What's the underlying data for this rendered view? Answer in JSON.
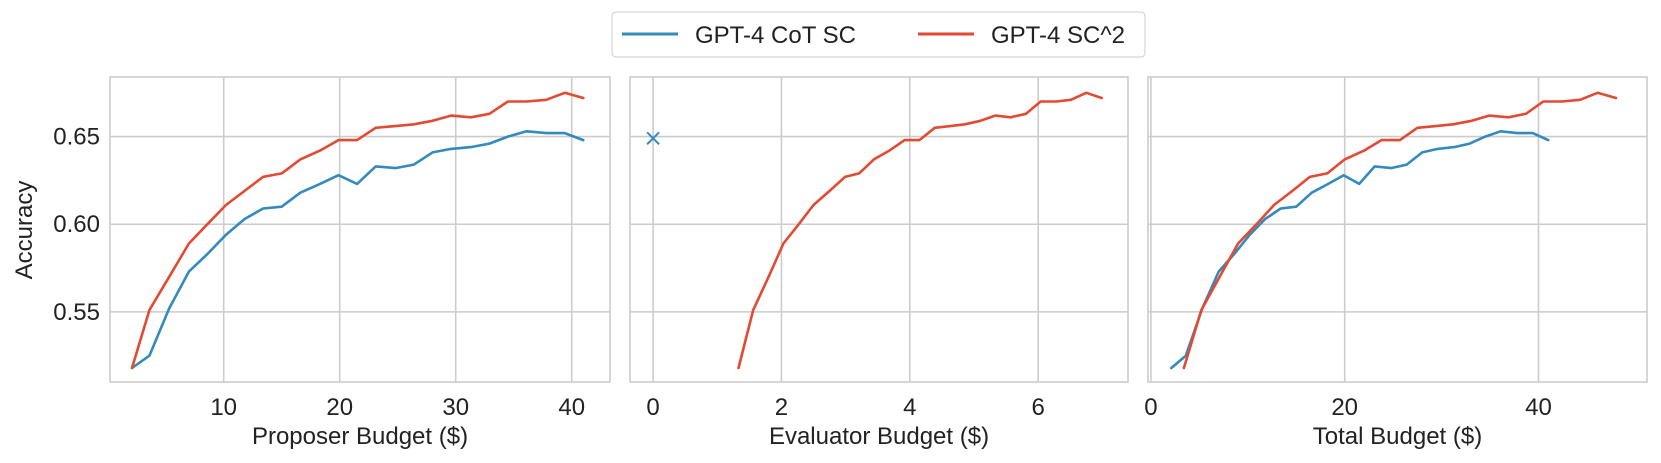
{
  "legend": {
    "entries": [
      {
        "label": "GPT-4 CoT SC",
        "color": "#348ABD"
      },
      {
        "label": "GPT-4 SC^2",
        "color": "#E24A33"
      }
    ]
  },
  "ylabel": "Accuracy",
  "chart_data": [
    {
      "type": "line",
      "xlabel": "Proposer Budget ($)",
      "ylabel": "Accuracy",
      "xlim": [
        0.2,
        43.3
      ],
      "ylim": [
        0.51,
        0.684
      ],
      "xticks": [
        10,
        20,
        30,
        40
      ],
      "yticks": [
        0.55,
        0.6,
        0.65
      ],
      "grid": true,
      "series": [
        {
          "name": "GPT-4 CoT SC",
          "color": "#348ABD",
          "x": [
            2.1,
            3.6,
            5.3,
            7.0,
            8.6,
            10.2,
            11.8,
            13.4,
            15.0,
            16.6,
            18.3,
            19.9,
            21.5,
            23.1,
            24.8,
            26.4,
            28.0,
            29.6,
            31.3,
            32.9,
            34.5,
            36.1,
            37.8,
            39.4,
            41.0
          ],
          "y": [
            0.518,
            0.525,
            0.552,
            0.573,
            0.583,
            0.594,
            0.603,
            0.609,
            0.61,
            0.618,
            0.623,
            0.628,
            0.623,
            0.633,
            0.632,
            0.634,
            0.641,
            0.643,
            0.644,
            0.646,
            0.65,
            0.653,
            0.652,
            0.652,
            0.648
          ]
        },
        {
          "name": "GPT-4 SC^2",
          "color": "#E24A33",
          "x": [
            2.1,
            3.6,
            5.3,
            7.0,
            8.6,
            10.2,
            11.8,
            13.4,
            15.0,
            16.6,
            18.3,
            19.9,
            21.5,
            23.1,
            24.8,
            26.4,
            28.0,
            29.6,
            31.3,
            32.9,
            34.5,
            36.1,
            37.8,
            39.4,
            41.0
          ],
          "y": [
            0.518,
            0.551,
            0.57,
            0.589,
            0.6,
            0.611,
            0.619,
            0.627,
            0.629,
            0.637,
            0.642,
            0.648,
            0.648,
            0.655,
            0.656,
            0.657,
            0.659,
            0.662,
            0.661,
            0.663,
            0.67,
            0.67,
            0.671,
            0.675,
            0.672
          ]
        }
      ]
    },
    {
      "type": "line",
      "xlabel": "Evaluator Budget ($)",
      "xlim": [
        -0.36,
        7.4
      ],
      "ylim": [
        0.51,
        0.684
      ],
      "xticks": [
        0,
        2,
        4,
        6
      ],
      "yticks": [
        0.55,
        0.6,
        0.65
      ],
      "grid": true,
      "series": [
        {
          "name": "GPT-4 CoT SC",
          "color": "#348ABD",
          "marker": "x",
          "x": [
            0
          ],
          "y": [
            0.649
          ]
        },
        {
          "name": "GPT-4 SC^2",
          "color": "#E24A33",
          "x": [
            1.33,
            1.56,
            1.8,
            2.03,
            2.27,
            2.5,
            2.75,
            2.99,
            3.21,
            3.44,
            3.68,
            3.92,
            4.15,
            4.39,
            4.63,
            4.86,
            5.1,
            5.33,
            5.57,
            5.81,
            6.04,
            6.28,
            6.51,
            6.75,
            6.99
          ],
          "y": [
            0.518,
            0.551,
            0.57,
            0.589,
            0.6,
            0.611,
            0.619,
            0.627,
            0.629,
            0.637,
            0.642,
            0.648,
            0.648,
            0.655,
            0.656,
            0.657,
            0.659,
            0.662,
            0.661,
            0.663,
            0.67,
            0.67,
            0.671,
            0.675,
            0.672
          ]
        }
      ]
    },
    {
      "type": "line",
      "xlabel": "Total Budget ($)",
      "xlim": [
        -0.3,
        51.2
      ],
      "ylim": [
        0.51,
        0.684
      ],
      "xticks": [
        0,
        20,
        40
      ],
      "yticks": [
        0.55,
        0.6,
        0.65
      ],
      "grid": true,
      "series": [
        {
          "name": "GPT-4 CoT SC",
          "color": "#348ABD",
          "x": [
            2.1,
            3.6,
            5.3,
            7.0,
            8.6,
            10.2,
            11.8,
            13.4,
            15.0,
            16.6,
            18.3,
            19.9,
            21.5,
            23.1,
            24.8,
            26.4,
            28.0,
            29.6,
            31.3,
            32.9,
            34.5,
            36.1,
            37.8,
            39.4,
            41.0
          ],
          "y": [
            0.518,
            0.525,
            0.552,
            0.573,
            0.583,
            0.594,
            0.603,
            0.609,
            0.61,
            0.618,
            0.623,
            0.628,
            0.623,
            0.633,
            0.632,
            0.634,
            0.641,
            0.643,
            0.644,
            0.646,
            0.65,
            0.653,
            0.652,
            0.652,
            0.648
          ]
        },
        {
          "name": "GPT-4 SC^2",
          "color": "#E24A33",
          "x": [
            3.4,
            5.2,
            7.1,
            9.0,
            10.9,
            12.7,
            14.6,
            16.4,
            18.2,
            20.0,
            22.0,
            23.8,
            25.7,
            27.5,
            29.4,
            31.2,
            33.1,
            34.9,
            36.9,
            38.7,
            40.5,
            42.4,
            44.3,
            46.1,
            48.0
          ],
          "y": [
            0.518,
            0.551,
            0.57,
            0.589,
            0.6,
            0.611,
            0.619,
            0.627,
            0.629,
            0.637,
            0.642,
            0.648,
            0.648,
            0.655,
            0.656,
            0.657,
            0.659,
            0.662,
            0.661,
            0.663,
            0.67,
            0.67,
            0.671,
            0.675,
            0.672
          ]
        }
      ]
    }
  ]
}
